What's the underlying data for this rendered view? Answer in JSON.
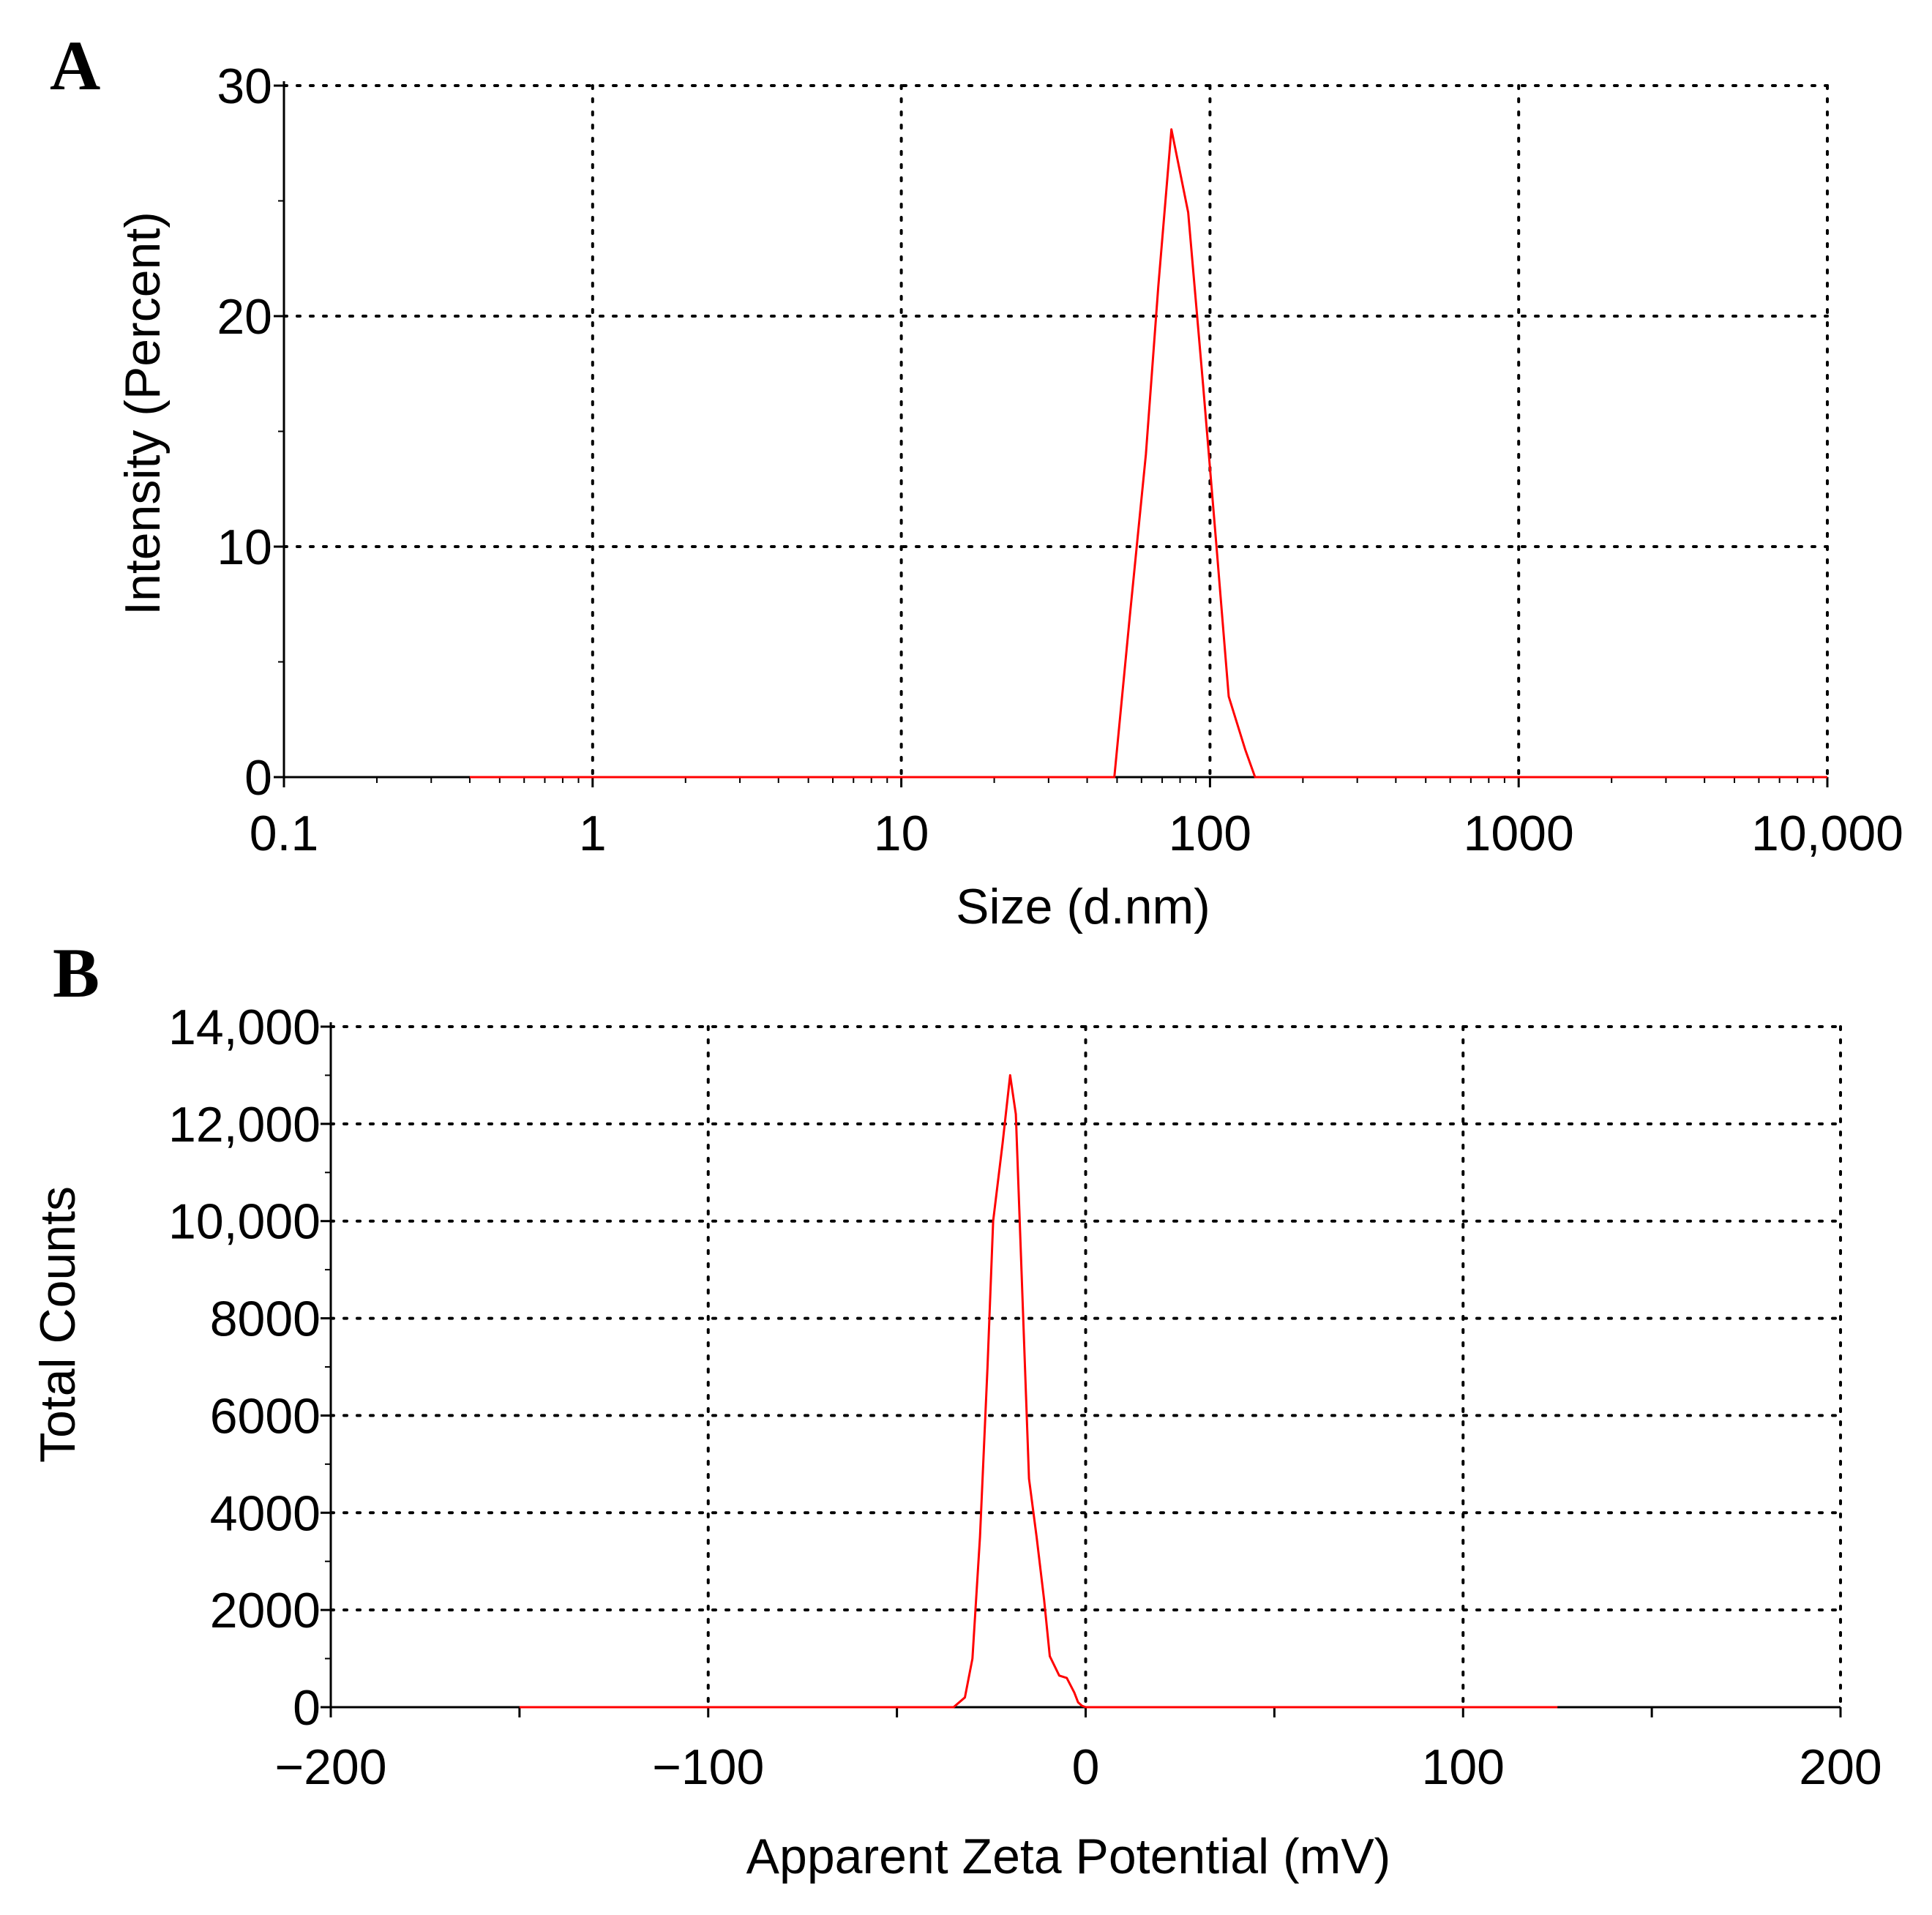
{
  "chart_data": [
    {
      "panel": "A",
      "type": "line",
      "xscale": "log",
      "xlabel": "Size (d.nm)",
      "ylabel": "Intensity (Percent)",
      "xlim": [
        0.1,
        10000
      ],
      "ylim": [
        0,
        30
      ],
      "x_ticks": [
        0.1,
        1,
        10,
        100,
        1000,
        10000
      ],
      "x_tick_labels": [
        "0.1",
        "1",
        "10",
        "100",
        "1000",
        "10,000"
      ],
      "y_ticks": [
        0,
        10,
        20,
        30
      ],
      "y_tick_labels": [
        "0",
        "10",
        "20",
        "30"
      ],
      "y_minor_step": 5,
      "grid": true,
      "color": "#ff0000",
      "series": [
        {
          "name": "Intensity",
          "x": [
            0.4,
            5,
            30,
            49,
            55,
            62,
            68,
            75,
            85,
            95,
            105,
            115,
            130,
            140,
            500,
            2000,
            10000
          ],
          "y": [
            0,
            0,
            0,
            0,
            7,
            14,
            21.3,
            28.1,
            24.5,
            17,
            10,
            3.5,
            1.2,
            0,
            0,
            0,
            0
          ]
        }
      ]
    },
    {
      "panel": "B",
      "type": "line",
      "xscale": "linear",
      "xlabel": "Apparent Zeta Potential (mV)",
      "ylabel": "Total Counts",
      "xlim": [
        -200,
        200
      ],
      "ylim": [
        0,
        14000
      ],
      "x_ticks": [
        -200,
        -100,
        0,
        100,
        200
      ],
      "x_tick_labels": [
        "−200",
        "−100",
        "0",
        "100",
        "200"
      ],
      "y_ticks": [
        0,
        2000,
        4000,
        6000,
        8000,
        10000,
        12000,
        14000
      ],
      "y_tick_labels": [
        "0",
        "2000",
        "4000",
        "6000",
        "8000",
        "10,000",
        "12,000",
        "14,000"
      ],
      "y_minor_step": 1000,
      "x_minor_step": 50,
      "grid": true,
      "color": "#ff0000",
      "series": [
        {
          "name": "Total Counts",
          "x": [
            -150,
            -100,
            -50,
            -35,
            -32,
            -30,
            -28,
            -26,
            -24.5,
            -22,
            -20,
            -18.5,
            -17,
            -15,
            -13,
            -11,
            -9.5,
            -7,
            -5,
            -3,
            -2,
            -1,
            0,
            50,
            100,
            125
          ],
          "y": [
            0,
            0,
            0,
            0,
            200,
            1000,
            3500,
            7000,
            10000,
            11600,
            13000,
            12200,
            9000,
            4700,
            3500,
            2200,
            1050,
            650,
            600,
            300,
            100,
            30,
            0,
            0,
            0,
            0
          ]
        }
      ]
    }
  ]
}
